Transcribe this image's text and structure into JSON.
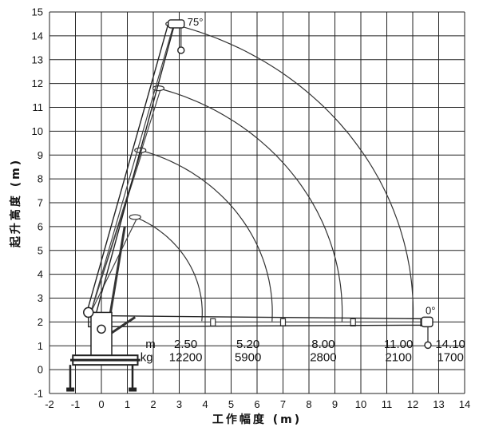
{
  "chart_data": {
    "type": "diagram",
    "xlabel": "工作幅度 (m)",
    "ylabel": "起升高度 (m)",
    "xlim": [
      -2,
      14
    ],
    "ylim": [
      -1,
      15
    ],
    "x_ticks": [
      "-2",
      "-1",
      "0",
      "1",
      "2",
      "3",
      "4",
      "5",
      "6",
      "7",
      "8",
      "9",
      "10",
      "11",
      "12",
      "13",
      "14"
    ],
    "y_ticks": [
      "-1",
      "0",
      "1",
      "2",
      "3",
      "4",
      "5",
      "6",
      "7",
      "8",
      "9",
      "10",
      "11",
      "12",
      "13",
      "14",
      "15"
    ],
    "grid": true,
    "angle_labels": {
      "max": "75°",
      "min": "0°"
    },
    "load_table": {
      "m_label": "m",
      "kg_label": "kg",
      "radius": [
        "2.50",
        "5.20",
        "8.00",
        "11.00",
        "14.10"
      ],
      "load": [
        "12200",
        "5900",
        "2800",
        "2100",
        "1700"
      ]
    },
    "boom_sections": [
      {
        "horizontal_tip": [
          4.3,
          2.0
        ],
        "raised_tip": [
          1.3,
          6.4
        ]
      },
      {
        "horizontal_tip": [
          7.0,
          2.0
        ],
        "raised_tip": [
          1.5,
          9.2
        ]
      },
      {
        "horizontal_tip": [
          9.7,
          2.0
        ],
        "raised_tip": [
          2.2,
          11.8
        ]
      },
      {
        "horizontal_tip": [
          12.4,
          2.0
        ],
        "raised_tip": [
          2.7,
          14.5
        ]
      }
    ]
  }
}
